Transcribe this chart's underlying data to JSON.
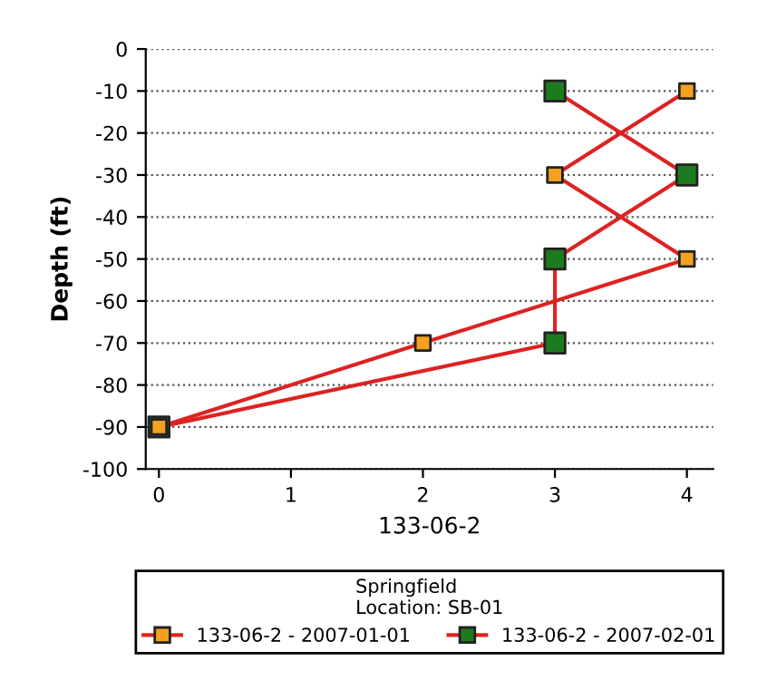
{
  "chart_data": {
    "type": "line",
    "xlabel": "133-06-2",
    "ylabel": "Depth (ft)",
    "legend_title": "Springfield\nLocation: SB-01",
    "series": [
      {
        "name": "133-06-2 - 2007-01-01",
        "color": "#dd2222",
        "colors": [
          "#f5a01e",
          "#f5a01e",
          "#f5a01e",
          "#f5a01e",
          "#f5a01e"
        ],
        "x": [
          0,
          2,
          4,
          3,
          4
        ],
        "values": [
          -90,
          -70,
          -50,
          -30,
          -10
        ]
      },
      {
        "name": "133-06-2 - 2007-02-01",
        "color": "#dd2222",
        "colors": [
          "#1e7a1e",
          "#1e7a1e",
          "#1e7a1e",
          "#1e7a1e",
          "#1e7a1e"
        ],
        "x": [
          0,
          3,
          3,
          4,
          3
        ],
        "values": [
          -90,
          -70,
          -50,
          -30,
          -10
        ]
      }
    ],
    "xlim": [
      -0.1,
      4.2
    ],
    "xticks": [
      0,
      1,
      2,
      3,
      4
    ],
    "ylim": [
      -100,
      0
    ],
    "yticks": [
      -100,
      -90,
      -80,
      -70,
      -60,
      -50,
      -40,
      -30,
      -20,
      -10,
      0
    ],
    "grid": "y",
    "legend": "bottom",
    "marker": "square",
    "line_style": "solid"
  }
}
